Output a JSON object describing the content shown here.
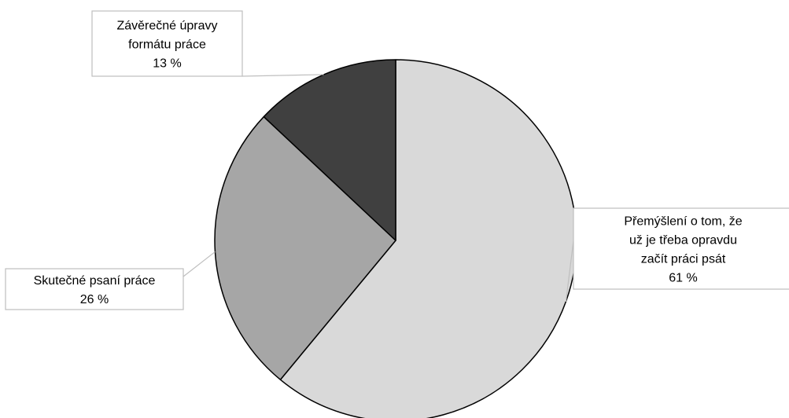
{
  "chart_data": {
    "type": "pie",
    "title": "",
    "slices": [
      {
        "label_lines": [
          "Přemýšlení o tom, že",
          "už je třeba opravdu",
          "začít práci psát"
        ],
        "value": 61,
        "value_label": "61 %",
        "color": "#d9d9d9"
      },
      {
        "label_lines": [
          "Skutečné psaní práce"
        ],
        "value": 26,
        "value_label": "26 %",
        "color": "#a6a6a6"
      },
      {
        "label_lines": [
          "Závěrečné úpravy",
          "formátu práce"
        ],
        "value": 13,
        "value_label": "13 %",
        "color": "#404040"
      }
    ],
    "start_angle_deg": 0,
    "direction": "clockwise",
    "slice_border_color": "#000000",
    "callout_border_color": "#bfbfbf",
    "legend": "none"
  }
}
